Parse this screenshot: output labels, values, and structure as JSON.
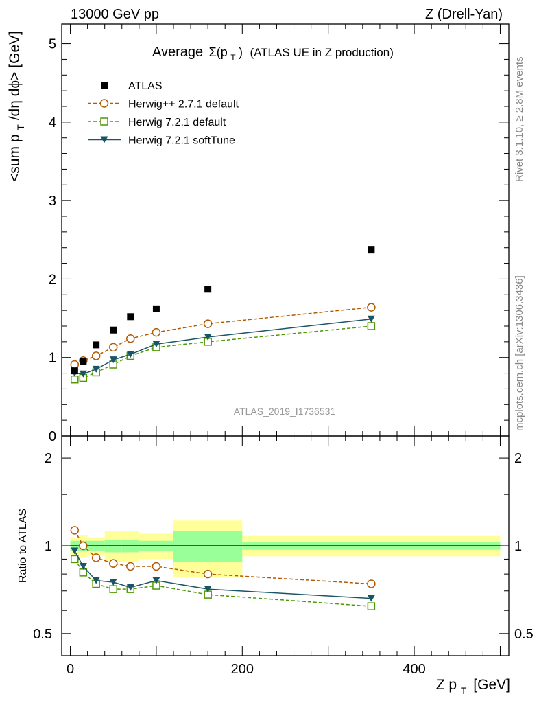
{
  "header": {
    "left": "13000 GeV pp",
    "right": "Z (Drell-Yan)"
  },
  "plot_title": {
    "prefix": "Average",
    "sigma": "Σ(p",
    "sub": "T",
    "close": ")",
    "rest": "(ATLAS UE in Z production)"
  },
  "side_labels": {
    "rivet": "Rivet 3.1.10, ≥ 2.8M events",
    "mcplots": "mcplots.cern.ch [arXiv:1306.3436]"
  },
  "watermark": "ATLAS_2019_I1736531",
  "y_label_main": {
    "a": "<sum p",
    "sub": "T",
    "b": "/dη dϕ> [GeV]"
  },
  "y_label_ratio": "Ratio to ATLAS",
  "x_label": {
    "a": "Z p",
    "sub": "T",
    "b": "[GeV]"
  },
  "colors": {
    "atlas": "#000000",
    "herwigpp": "#b35900",
    "herwig721": "#4d9900",
    "softtune": "#1a5566",
    "band_inner": "#99ff99",
    "band_outer": "#ffff99"
  },
  "chart_data": [
    {
      "type": "scatter",
      "panel": "main",
      "x_range": [
        -10,
        510
      ],
      "ylim": [
        0,
        5.25
      ],
      "y_ticks": [
        0,
        1,
        2,
        3,
        4,
        5
      ],
      "y_tick_labels": [
        "0",
        "1",
        "2",
        "3",
        "4",
        "5"
      ],
      "x_ticks": [
        0,
        200,
        400
      ],
      "legend_position": "top-left",
      "series": [
        {
          "name": "ATLAS",
          "style": "data",
          "x": [
            5,
            15,
            30,
            50,
            70,
            100,
            160,
            350
          ],
          "y": [
            0.83,
            0.95,
            1.16,
            1.35,
            1.52,
            1.62,
            1.87,
            2.37
          ]
        },
        {
          "name": "Herwig++ 2.7.1 default",
          "style": "circle-dashed",
          "x": [
            5,
            15,
            30,
            50,
            70,
            100,
            160,
            350
          ],
          "y": [
            0.91,
            0.96,
            1.02,
            1.13,
            1.24,
            1.32,
            1.43,
            1.64
          ]
        },
        {
          "name": "Herwig 7.2.1 default",
          "style": "square-dashed",
          "x": [
            5,
            15,
            30,
            50,
            70,
            100,
            160,
            350
          ],
          "y": [
            0.72,
            0.74,
            0.81,
            0.91,
            1.02,
            1.13,
            1.2,
            1.4
          ]
        },
        {
          "name": "Herwig 7.2.1 softTune",
          "style": "triangle-solid",
          "x": [
            5,
            15,
            30,
            50,
            70,
            100,
            160,
            350
          ],
          "y": [
            0.8,
            0.79,
            0.85,
            0.97,
            1.04,
            1.17,
            1.26,
            1.49
          ]
        }
      ]
    },
    {
      "type": "line",
      "panel": "ratio",
      "x_range": [
        -10,
        510
      ],
      "ylim": [
        0.42,
        2.38
      ],
      "log_y": true,
      "y_ticks": [
        0.5,
        1,
        2
      ],
      "y_tick_labels": [
        "0.5",
        "1",
        "2"
      ],
      "x_ticks": [
        0,
        200,
        400
      ],
      "x_tick_labels": [
        "0",
        "200",
        "400"
      ],
      "bands": [
        {
          "x0": 0,
          "x1": 10,
          "inner": 0.04,
          "outer": 0.07
        },
        {
          "x0": 10,
          "x1": 20,
          "inner": 0.04,
          "outer": 0.09
        },
        {
          "x0": 20,
          "x1": 40,
          "inner": 0.04,
          "outer": 0.07
        },
        {
          "x0": 40,
          "x1": 60,
          "inner": 0.05,
          "outer": 0.12
        },
        {
          "x0": 60,
          "x1": 80,
          "inner": 0.05,
          "outer": 0.12
        },
        {
          "x0": 80,
          "x1": 120,
          "inner": 0.04,
          "outer": 0.1
        },
        {
          "x0": 120,
          "x1": 200,
          "inner": 0.12,
          "outer": 0.22
        },
        {
          "x0": 200,
          "x1": 500,
          "inner": 0.03,
          "outer": 0.08
        }
      ],
      "series": [
        {
          "name": "Herwig++ 2.7.1 default",
          "style": "circle-dashed",
          "x": [
            5,
            15,
            30,
            50,
            70,
            100,
            160,
            350
          ],
          "y": [
            1.13,
            1.0,
            0.91,
            0.87,
            0.85,
            0.85,
            0.8,
            0.74
          ]
        },
        {
          "name": "Herwig 7.2.1 default",
          "style": "square-dashed",
          "x": [
            5,
            15,
            30,
            50,
            70,
            100,
            160,
            350
          ],
          "y": [
            0.9,
            0.81,
            0.74,
            0.71,
            0.71,
            0.73,
            0.68,
            0.62
          ]
        },
        {
          "name": "Herwig 7.2.1 softTune",
          "style": "triangle-solid",
          "x": [
            5,
            15,
            30,
            50,
            70,
            100,
            160,
            350
          ],
          "y": [
            0.96,
            0.85,
            0.76,
            0.75,
            0.72,
            0.76,
            0.71,
            0.66
          ]
        }
      ]
    }
  ]
}
